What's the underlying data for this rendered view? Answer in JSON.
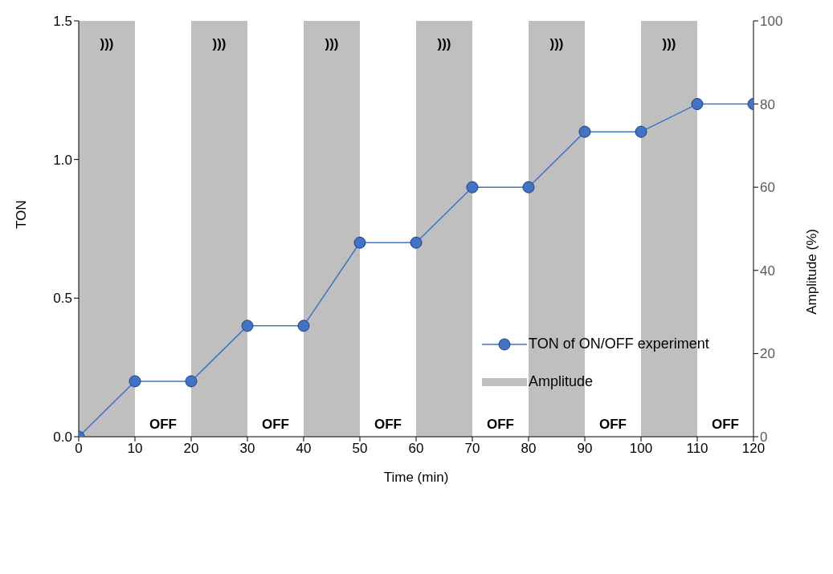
{
  "chart_data": {
    "type": "line",
    "xlabel": "Time (min)",
    "ylabel": "TON",
    "y2label": "Amplitude (%)",
    "xlim": [
      0,
      120
    ],
    "xticks": [
      0,
      10,
      20,
      30,
      40,
      50,
      60,
      70,
      80,
      90,
      100,
      110,
      120
    ],
    "ylim": [
      0,
      1.5
    ],
    "yticks": [
      {
        "value": 0,
        "label": "0.0"
      },
      {
        "value": 0.5,
        "label": "0.5"
      },
      {
        "value": 1,
        "label": "1.0"
      },
      {
        "value": 1.5,
        "label": "1.5"
      }
    ],
    "y2lim": [
      0,
      100
    ],
    "y2ticks": [
      0,
      20,
      40,
      60,
      80,
      100
    ],
    "series": [
      {
        "name": "TON of ON/OFF experiment",
        "color": "#4472c4",
        "marker": "circle",
        "x": [
          0,
          10,
          20,
          30,
          40,
          50,
          60,
          70,
          80,
          90,
          100,
          110,
          120
        ],
        "values": [
          0,
          0.2,
          0.2,
          0.4,
          0.4,
          0.7,
          0.7,
          0.9,
          0.9,
          1.1,
          1.1,
          1.2,
          1.2
        ]
      },
      {
        "name": "Amplitude",
        "type": "area",
        "axis": "y2",
        "color": "#bfbfbf",
        "x": [
          0,
          10,
          10,
          20,
          20,
          30,
          30,
          40,
          40,
          50,
          50,
          60,
          60,
          70,
          70,
          80,
          80,
          90,
          90,
          100,
          100,
          110,
          110,
          120
        ],
        "values": [
          100,
          100,
          0,
          0,
          100,
          100,
          0,
          0,
          100,
          100,
          0,
          0,
          100,
          100,
          0,
          0,
          100,
          100,
          0,
          0,
          100,
          100,
          0,
          0
        ]
      }
    ],
    "annotations": [
      ")))",
      ")))",
      ")))",
      ")))",
      ")))",
      ")))",
      "OFF",
      "OFF",
      "OFF",
      "OFF",
      "OFF",
      "OFF"
    ],
    "legend": "right",
    "grid": false
  }
}
